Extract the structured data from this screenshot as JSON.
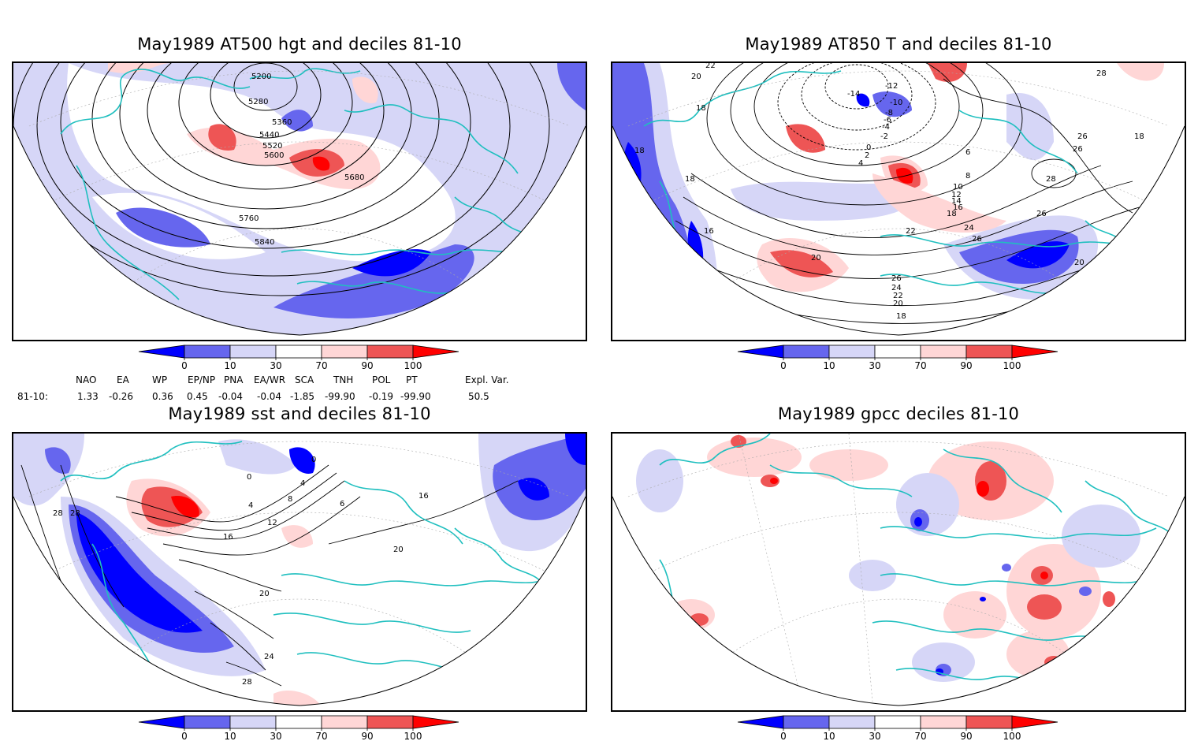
{
  "panels": [
    {
      "id": "p1",
      "title": "May1989 AT500 hgt and deciles 81-10",
      "contour_labels": [
        "5200",
        "5280",
        "5360",
        "5440",
        "5520",
        "5600",
        "5680",
        "5760",
        "5840"
      ]
    },
    {
      "id": "p2",
      "title": "May1989 AT850 T and deciles 81-10",
      "contour_labels": [
        "22",
        "20",
        "18",
        "18",
        "18",
        "16",
        "-14",
        "-12",
        "-10",
        "-8",
        "-6",
        "-4",
        "-2",
        "0",
        "2",
        "4",
        "6",
        "8",
        "10",
        "12",
        "14",
        "16",
        "18",
        "22",
        "24",
        "26",
        "26",
        "24",
        "22",
        "20",
        "18",
        "20",
        "28",
        "26",
        "26",
        "28",
        "18",
        "20",
        "26"
      ]
    },
    {
      "id": "p3",
      "title": "May1989 sst and deciles 81-10",
      "contour_labels": [
        "0",
        "0",
        "4",
        "8",
        "4",
        "6",
        "12",
        "16",
        "20",
        "24",
        "28",
        "28",
        "28",
        "16",
        "20"
      ]
    },
    {
      "id": "p4",
      "title": "May1989 gpcc deciles 81-10",
      "contour_labels": []
    }
  ],
  "colorbar": {
    "ticks": [
      "0",
      "10",
      "30",
      "70",
      "90",
      "100"
    ],
    "colors": [
      "#0000ff",
      "#6666ee",
      "#d6d6f7",
      "#ffffff",
      "#ffd6d6",
      "#ee5555",
      "#ff0000"
    ]
  },
  "indices": {
    "headers": [
      "NAO",
      "EA",
      "WP",
      "EP/NP",
      "PNA",
      "EA/WR",
      "SCA",
      "TNH",
      "POL",
      "PT",
      "Expl. Var."
    ],
    "row_label": "81-10:",
    "values": [
      "1.33",
      "-0.26",
      "0.36",
      "0.45",
      "-0.04",
      "-0.04",
      "-1.85",
      "-99.90",
      "-0.19",
      "-99.90",
      "50.5"
    ]
  }
}
